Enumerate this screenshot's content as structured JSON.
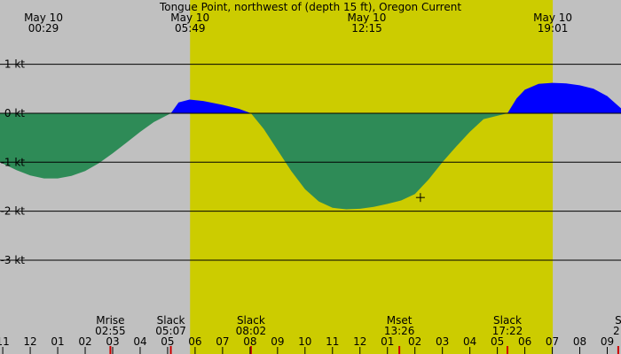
{
  "chart_data": {
    "type": "area",
    "title": "Tongue Point, northwest of (depth 15 ft), Oregon Current",
    "colors": {
      "night": "#c0c0c0",
      "day": "#cccc00",
      "flood": "#0000ff",
      "ebb": "#2e8b57",
      "tick_red": "#cc0000"
    },
    "x_unit": "hours after midnight May 10",
    "xlim": [
      -1.1,
      21.5
    ],
    "ylim": [
      -4.3,
      1.95
    ],
    "y_ticks": [
      {
        "value": 1,
        "label": "1 kt"
      },
      {
        "value": 0,
        "label": "0 kt"
      },
      {
        "value": -1,
        "label": "-1 kt"
      },
      {
        "value": -2,
        "label": "-2 kt"
      },
      {
        "value": -3,
        "label": "-3 kt"
      }
    ],
    "daylight": [
      5.817,
      19.017
    ],
    "top_labels": [
      {
        "date": "May 10",
        "time": "00:29",
        "x": 0.483
      },
      {
        "date": "May 10",
        "time": "05:49",
        "x": 5.817
      },
      {
        "date": "May 10",
        "time": "12:15",
        "x": 12.25
      },
      {
        "date": "May 10",
        "time": "19:01",
        "x": 19.017
      }
    ],
    "events": [
      {
        "name": "Mrise",
        "time": "02:55",
        "x": 2.917
      },
      {
        "name": "Slack",
        "time": "05:07",
        "x": 5.117
      },
      {
        "name": "Slack",
        "time": "08:02",
        "x": 8.033
      },
      {
        "name": "Mset",
        "time": "13:26",
        "x": 13.433
      },
      {
        "name": "Slack",
        "time": "17:22",
        "x": 17.367
      },
      {
        "name": "S",
        "time": "2:",
        "x": 21.4
      }
    ],
    "hour_ticks": [
      {
        "label": "11",
        "x": -1
      },
      {
        "label": "12",
        "x": 0
      },
      {
        "label": "01",
        "x": 1
      },
      {
        "label": "02",
        "x": 2
      },
      {
        "label": "03",
        "x": 3
      },
      {
        "label": "04",
        "x": 4
      },
      {
        "label": "05",
        "x": 5
      },
      {
        "label": "06",
        "x": 6
      },
      {
        "label": "07",
        "x": 7
      },
      {
        "label": "08",
        "x": 8
      },
      {
        "label": "09",
        "x": 9
      },
      {
        "label": "10",
        "x": 10
      },
      {
        "label": "11",
        "x": 11
      },
      {
        "label": "12",
        "x": 12
      },
      {
        "label": "01",
        "x": 13
      },
      {
        "label": "02",
        "x": 14
      },
      {
        "label": "03",
        "x": 15
      },
      {
        "label": "04",
        "x": 16
      },
      {
        "label": "05",
        "x": 17
      },
      {
        "label": "06",
        "x": 18
      },
      {
        "label": "07",
        "x": 19
      },
      {
        "label": "08",
        "x": 20
      },
      {
        "label": "09",
        "x": 21
      }
    ],
    "current_series": {
      "x": [
        -1.1,
        -0.5,
        0,
        0.5,
        1,
        1.5,
        2,
        2.5,
        3,
        3.5,
        4,
        4.5,
        5.117,
        5.4,
        5.8,
        6.3,
        7,
        7.6,
        8.033,
        8.5,
        9,
        9.5,
        10,
        10.5,
        11,
        11.5,
        12,
        12.5,
        13,
        13.5,
        14,
        14.5,
        15,
        15.5,
        16,
        16.5,
        17.367,
        17.7,
        18,
        18.5,
        19,
        19.5,
        20,
        20.5,
        21,
        21.5
      ],
      "y": [
        -1.0,
        -1.16,
        -1.27,
        -1.33,
        -1.33,
        -1.28,
        -1.18,
        -1.02,
        -0.82,
        -0.6,
        -0.38,
        -0.18,
        0,
        0.22,
        0.28,
        0.25,
        0.17,
        0.09,
        0,
        -0.32,
        -0.75,
        -1.18,
        -1.55,
        -1.8,
        -1.93,
        -1.96,
        -1.95,
        -1.91,
        -1.85,
        -1.78,
        -1.65,
        -1.35,
        -1.0,
        -0.68,
        -0.38,
        -0.12,
        0,
        0.3,
        0.48,
        0.6,
        0.62,
        0.61,
        0.57,
        0.5,
        0.35,
        0.1
      ]
    },
    "marker": {
      "x": 14.2,
      "y": -1.72
    }
  }
}
